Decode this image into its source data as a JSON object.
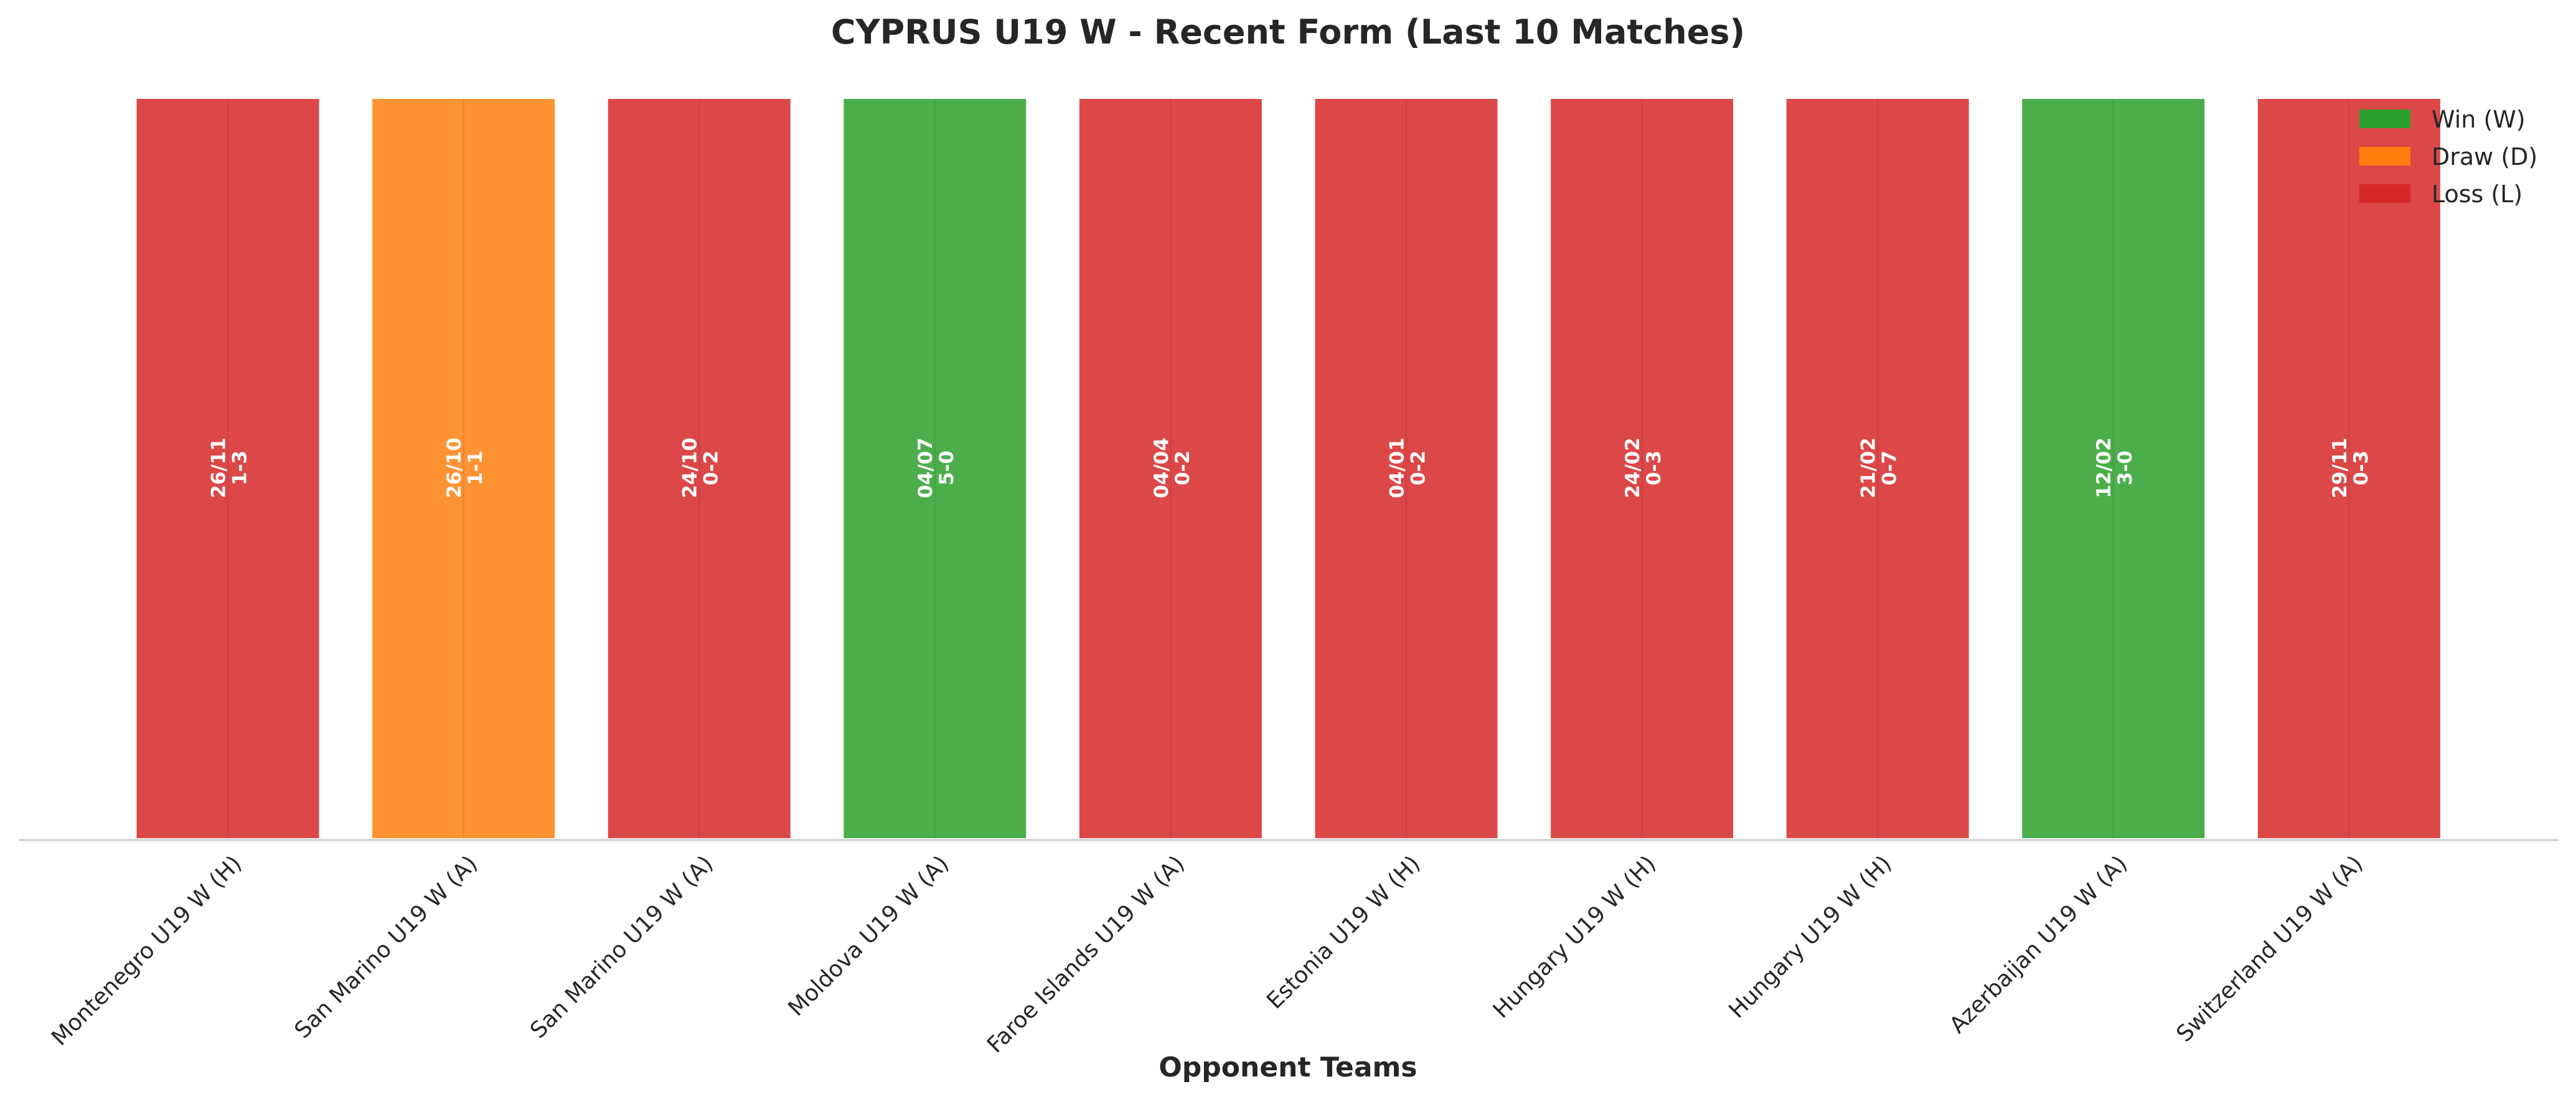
{
  "chart_data": {
    "type": "bar",
    "title": "CYPRUS U19 W - Recent Form (Last 10 Matches)",
    "xlabel": "Opponent Teams",
    "ylabel": "",
    "grid": false,
    "legend_position": "top-right",
    "categories": [
      "Montenegro U19 W (H)",
      "San Marino U19 W (A)",
      "San Marino U19 W (A)",
      "Moldova U19 W (A)",
      "Faroe Islands U19 W (A)",
      "Estonia U19 W (H)",
      "Hungary U19 W (H)",
      "Hungary U19 W (H)",
      "Azerbaijan U19 W (A)",
      "Switzerland U19 W (A)"
    ],
    "values": [
      1,
      1,
      1,
      1,
      1,
      1,
      1,
      1,
      1,
      1
    ],
    "results": [
      "L",
      "D",
      "L",
      "W",
      "L",
      "L",
      "L",
      "L",
      "W",
      "L"
    ],
    "dates": [
      "26/11",
      "26/10",
      "24/10",
      "04/07",
      "04/04",
      "04/01",
      "24/02",
      "21/02",
      "12/02",
      "29/11"
    ],
    "scores": [
      "1-3",
      "1-1",
      "0-2",
      "5-0",
      "0-2",
      "0-2",
      "0-3",
      "0-7",
      "3-0",
      "0-3"
    ],
    "legend": [
      {
        "key": "W",
        "label": "Win (W)"
      },
      {
        "key": "D",
        "label": "Draw (D)"
      },
      {
        "key": "L",
        "label": "Loss (L)"
      }
    ],
    "colors": {
      "W": "#2ca02c",
      "D": "#ff7f0e",
      "L": "#d62728"
    }
  }
}
